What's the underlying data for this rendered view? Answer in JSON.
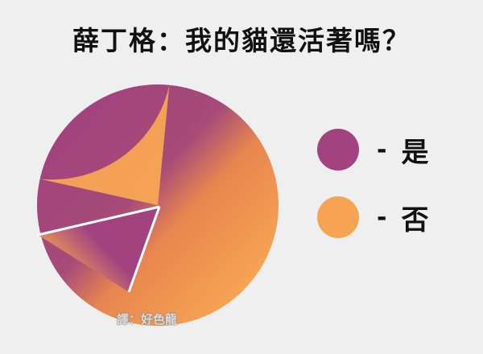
{
  "chart_data": {
    "type": "pie",
    "title": "薛丁格：我的貓還活著嗎？",
    "series": [
      {
        "label": "是",
        "value": 0.45,
        "color": "#a2427f"
      },
      {
        "label": "否",
        "value": 0.55,
        "color": "#f6a353"
      }
    ],
    "inset_slice": {
      "label": "是",
      "value": 0.14,
      "color": "#a2427f"
    },
    "legend_placement": "right",
    "legend": [
      {
        "label": "是",
        "color": "#a2427f"
      },
      {
        "label": "否",
        "color": "#f6a353"
      }
    ]
  },
  "legend_dash": "-",
  "watermark": "譯：好色龍"
}
